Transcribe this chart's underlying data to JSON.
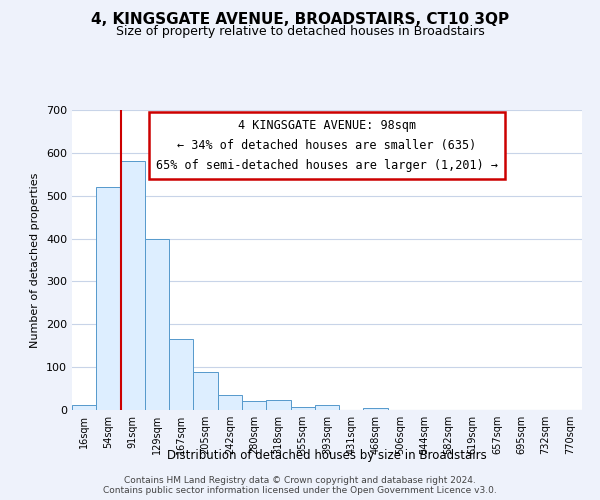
{
  "title": "4, KINGSGATE AVENUE, BROADSTAIRS, CT10 3QP",
  "subtitle": "Size of property relative to detached houses in Broadstairs",
  "xlabel": "Distribution of detached houses by size in Broadstairs",
  "ylabel": "Number of detached properties",
  "bar_labels": [
    "16sqm",
    "54sqm",
    "91sqm",
    "129sqm",
    "167sqm",
    "205sqm",
    "242sqm",
    "280sqm",
    "318sqm",
    "355sqm",
    "393sqm",
    "431sqm",
    "468sqm",
    "506sqm",
    "544sqm",
    "582sqm",
    "619sqm",
    "657sqm",
    "695sqm",
    "732sqm",
    "770sqm"
  ],
  "bar_values": [
    12,
    520,
    580,
    400,
    165,
    88,
    35,
    22,
    24,
    8,
    12,
    0,
    5,
    0,
    0,
    0,
    0,
    0,
    0,
    0,
    0
  ],
  "bar_fill_color": "#ddeeff",
  "bar_edge_color": "#5599cc",
  "vline_color": "#cc0000",
  "ylim": [
    0,
    700
  ],
  "yticks": [
    0,
    100,
    200,
    300,
    400,
    500,
    600,
    700
  ],
  "annotation_line1": "4 KINGSGATE AVENUE: 98sqm",
  "annotation_line2": "← 34% of detached houses are smaller (635)",
  "annotation_line3": "65% of semi-detached houses are larger (1,201) →",
  "annotation_box_color": "#ffffff",
  "annotation_box_edge": "#cc0000",
  "footer_line1": "Contains HM Land Registry data © Crown copyright and database right 2024.",
  "footer_line2": "Contains public sector information licensed under the Open Government Licence v3.0.",
  "background_color": "#eef2fb",
  "plot_bg_color": "#ffffff",
  "grid_color": "#c8d4e8",
  "title_fontsize": 11,
  "subtitle_fontsize": 9,
  "vline_bar_index": 2
}
